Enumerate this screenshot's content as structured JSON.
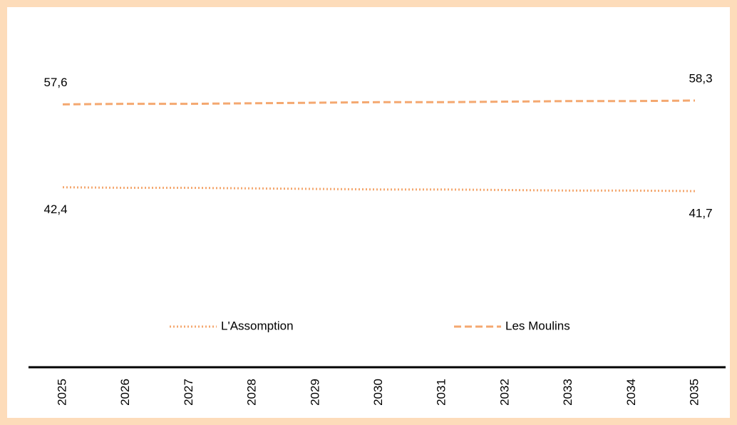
{
  "chart_data": {
    "type": "line",
    "categories": [
      "2025",
      "2026",
      "2027",
      "2028",
      "2029",
      "2030",
      "2031",
      "2032",
      "2033",
      "2034",
      "2035"
    ],
    "series": [
      {
        "name": "L'Assomption",
        "color": "#f4a870",
        "style": "dotted",
        "values": [
          42.4,
          42.3,
          42.3,
          42.2,
          42.1,
          42.0,
          42.0,
          41.9,
          41.8,
          41.8,
          41.7
        ],
        "value_labels": [
          "42,4",
          null,
          null,
          null,
          null,
          null,
          null,
          null,
          null,
          null,
          "41,7"
        ]
      },
      {
        "name": "Les Moulins",
        "color": "#f4a870",
        "style": "dashed",
        "values": [
          57.6,
          57.7,
          57.7,
          57.8,
          57.9,
          58.0,
          58.0,
          58.1,
          58.2,
          58.2,
          58.3
        ],
        "value_labels": [
          "57,6",
          null,
          null,
          null,
          null,
          null,
          null,
          null,
          null,
          null,
          "58,3"
        ]
      }
    ],
    "legend": "bottom"
  }
}
